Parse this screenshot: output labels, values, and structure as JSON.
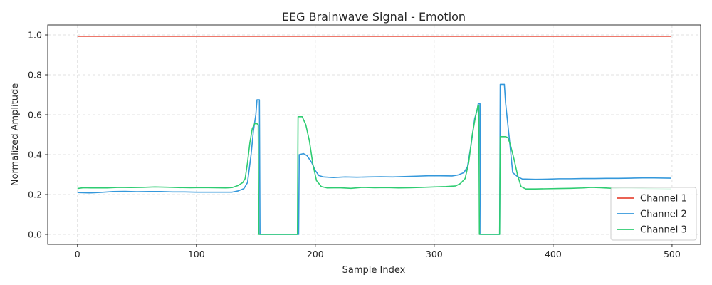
{
  "chart_data": {
    "type": "line",
    "title": "EEG Brainwave Signal - Emotion",
    "xlabel": "Sample Index",
    "ylabel": "Normalized Amplitude",
    "xlim": [
      -25,
      524
    ],
    "ylim": [
      -0.05,
      1.05
    ],
    "xticks": [
      0,
      100,
      200,
      300,
      400,
      500
    ],
    "yticks": [
      0.0,
      0.2,
      0.4,
      0.6,
      0.8,
      1.0
    ],
    "xtick_labels": [
      "0",
      "100",
      "200",
      "300",
      "400",
      "500"
    ],
    "ytick_labels": [
      "0.0",
      "0.2",
      "0.4",
      "0.6",
      "0.8",
      "1.0"
    ],
    "grid": true,
    "legend_position": "bottom-right",
    "series": [
      {
        "name": "Channel 1",
        "color": "#e74c3c",
        "points": [
          [
            0,
            0.993
          ],
          [
            499,
            0.993
          ]
        ]
      },
      {
        "name": "Channel 2",
        "color": "#3498db",
        "points": [
          [
            0,
            0.21
          ],
          [
            10,
            0.208
          ],
          [
            20,
            0.211
          ],
          [
            30,
            0.215
          ],
          [
            40,
            0.216
          ],
          [
            50,
            0.214
          ],
          [
            60,
            0.215
          ],
          [
            70,
            0.215
          ],
          [
            80,
            0.213
          ],
          [
            90,
            0.213
          ],
          [
            100,
            0.212
          ],
          [
            110,
            0.212
          ],
          [
            120,
            0.212
          ],
          [
            130,
            0.212
          ],
          [
            135,
            0.218
          ],
          [
            140,
            0.23
          ],
          [
            143,
            0.26
          ],
          [
            146,
            0.4
          ],
          [
            148,
            0.52
          ],
          [
            150,
            0.6
          ],
          [
            151,
            0.675
          ],
          [
            153,
            0.675
          ],
          [
            153.5,
            0.0
          ],
          [
            186,
            0.0
          ],
          [
            186.5,
            0.4
          ],
          [
            190,
            0.405
          ],
          [
            193,
            0.395
          ],
          [
            197,
            0.36
          ],
          [
            200,
            0.32
          ],
          [
            203,
            0.295
          ],
          [
            207,
            0.288
          ],
          [
            215,
            0.285
          ],
          [
            225,
            0.288
          ],
          [
            235,
            0.287
          ],
          [
            245,
            0.288
          ],
          [
            255,
            0.289
          ],
          [
            265,
            0.288
          ],
          [
            275,
            0.29
          ],
          [
            285,
            0.292
          ],
          [
            295,
            0.294
          ],
          [
            305,
            0.294
          ],
          [
            315,
            0.293
          ],
          [
            320,
            0.298
          ],
          [
            325,
            0.31
          ],
          [
            328,
            0.34
          ],
          [
            331,
            0.45
          ],
          [
            334,
            0.58
          ],
          [
            336,
            0.62
          ],
          [
            337,
            0.655
          ],
          [
            338.5,
            0.655
          ],
          [
            339,
            0.0
          ],
          [
            355,
            0.0
          ],
          [
            355.5,
            0.752
          ],
          [
            359,
            0.752
          ],
          [
            360,
            0.66
          ],
          [
            363,
            0.49
          ],
          [
            366,
            0.31
          ],
          [
            370,
            0.29
          ],
          [
            374,
            0.278
          ],
          [
            385,
            0.276
          ],
          [
            395,
            0.277
          ],
          [
            405,
            0.279
          ],
          [
            415,
            0.279
          ],
          [
            425,
            0.28
          ],
          [
            435,
            0.28
          ],
          [
            445,
            0.281
          ],
          [
            455,
            0.281
          ],
          [
            465,
            0.282
          ],
          [
            475,
            0.283
          ],
          [
            485,
            0.283
          ],
          [
            499,
            0.282
          ]
        ]
      },
      {
        "name": "Channel 3",
        "color": "#2ecc71",
        "points": [
          [
            0,
            0.23
          ],
          [
            5,
            0.234
          ],
          [
            15,
            0.233
          ],
          [
            25,
            0.233
          ],
          [
            35,
            0.236
          ],
          [
            45,
            0.235
          ],
          [
            55,
            0.236
          ],
          [
            65,
            0.238
          ],
          [
            75,
            0.237
          ],
          [
            85,
            0.235
          ],
          [
            95,
            0.234
          ],
          [
            105,
            0.235
          ],
          [
            115,
            0.234
          ],
          [
            125,
            0.233
          ],
          [
            130,
            0.235
          ],
          [
            135,
            0.245
          ],
          [
            139,
            0.26
          ],
          [
            141,
            0.28
          ],
          [
            143,
            0.36
          ],
          [
            145,
            0.46
          ],
          [
            147,
            0.53
          ],
          [
            149,
            0.555
          ],
          [
            151,
            0.555
          ],
          [
            152,
            0.55
          ],
          [
            152.5,
            0.0
          ],
          [
            185,
            0.0
          ],
          [
            185.5,
            0.59
          ],
          [
            189,
            0.59
          ],
          [
            192,
            0.55
          ],
          [
            195,
            0.47
          ],
          [
            198,
            0.35
          ],
          [
            201,
            0.27
          ],
          [
            205,
            0.24
          ],
          [
            210,
            0.233
          ],
          [
            220,
            0.234
          ],
          [
            230,
            0.231
          ],
          [
            240,
            0.236
          ],
          [
            250,
            0.234
          ],
          [
            260,
            0.235
          ],
          [
            270,
            0.233
          ],
          [
            280,
            0.234
          ],
          [
            290,
            0.236
          ],
          [
            300,
            0.238
          ],
          [
            310,
            0.24
          ],
          [
            318,
            0.243
          ],
          [
            322,
            0.255
          ],
          [
            326,
            0.28
          ],
          [
            329,
            0.36
          ],
          [
            332,
            0.5
          ],
          [
            335,
            0.6
          ],
          [
            337,
            0.65
          ],
          [
            337.5,
            0.645
          ],
          [
            338,
            0.0
          ],
          [
            355,
            0.0
          ],
          [
            355.5,
            0.49
          ],
          [
            360,
            0.49
          ],
          [
            362,
            0.485
          ],
          [
            364,
            0.45
          ],
          [
            367,
            0.38
          ],
          [
            370,
            0.3
          ],
          [
            373,
            0.24
          ],
          [
            377,
            0.228
          ],
          [
            385,
            0.228
          ],
          [
            395,
            0.229
          ],
          [
            405,
            0.23
          ],
          [
            415,
            0.231
          ],
          [
            425,
            0.233
          ],
          [
            432,
            0.236
          ],
          [
            440,
            0.234
          ],
          [
            450,
            0.231
          ],
          [
            460,
            0.233
          ],
          [
            470,
            0.232
          ],
          [
            480,
            0.23
          ],
          [
            490,
            0.229
          ],
          [
            499,
            0.228
          ]
        ]
      }
    ]
  }
}
